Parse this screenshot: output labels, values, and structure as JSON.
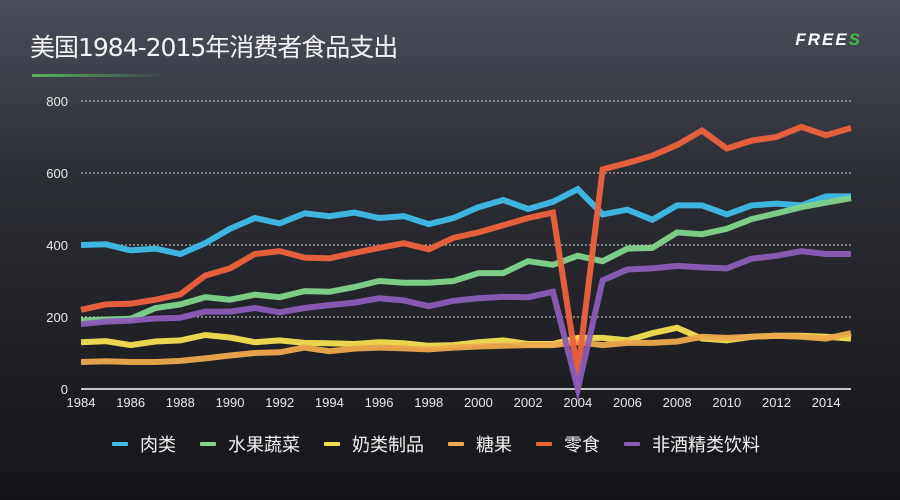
{
  "header": {
    "title": "美国1984-2015年消费者食品支出",
    "logo_text": "FREES",
    "logo_accent": "#3fbf4a"
  },
  "chart_data": {
    "type": "line",
    "title": "美国1984-2015年消费者食品支出",
    "xlabel": "",
    "ylabel": "",
    "xlim": [
      1984,
      2015
    ],
    "ylim": [
      0,
      800
    ],
    "yticks": [
      0,
      200,
      400,
      600,
      800
    ],
    "xticks": [
      1984,
      1986,
      1988,
      1990,
      1992,
      1994,
      1996,
      1998,
      2000,
      2002,
      2004,
      2006,
      2008,
      2010,
      2012,
      2014
    ],
    "grid": "horizontal dotted",
    "legend": "bottom",
    "x": [
      1984,
      1985,
      1986,
      1987,
      1988,
      1989,
      1990,
      1991,
      1992,
      1993,
      1994,
      1995,
      1996,
      1997,
      1998,
      1999,
      2000,
      2001,
      2002,
      2003,
      2004,
      2005,
      2006,
      2007,
      2008,
      2009,
      2010,
      2011,
      2012,
      2013,
      2014,
      2015
    ],
    "series": [
      {
        "name": "肉类",
        "color": "#3fbde9",
        "values": [
          400,
          402,
          385,
          390,
          375,
          405,
          445,
          475,
          460,
          488,
          480,
          490,
          475,
          480,
          458,
          475,
          505,
          525,
          500,
          520,
          555,
          485,
          498,
          470,
          510,
          510,
          485,
          510,
          515,
          510,
          535,
          535
        ]
      },
      {
        "name": "水果蔬菜",
        "color": "#7fd58b",
        "values": [
          190,
          193,
          195,
          225,
          235,
          255,
          248,
          262,
          255,
          272,
          270,
          283,
          300,
          295,
          295,
          300,
          322,
          322,
          355,
          345,
          370,
          355,
          390,
          392,
          435,
          430,
          445,
          472,
          488,
          505,
          518,
          530
        ]
      },
      {
        "name": "奶类制品",
        "color": "#f3e052",
        "values": [
          130,
          133,
          122,
          132,
          135,
          150,
          143,
          130,
          135,
          128,
          127,
          125,
          130,
          127,
          120,
          122,
          130,
          135,
          125,
          125,
          142,
          142,
          135,
          155,
          170,
          140,
          135,
          145,
          148,
          148,
          145,
          140
        ]
      },
      {
        "name": "糖果",
        "color": "#eea94c",
        "values": [
          75,
          77,
          75,
          75,
          78,
          85,
          93,
          100,
          102,
          115,
          105,
          112,
          115,
          113,
          110,
          115,
          118,
          120,
          122,
          122,
          130,
          122,
          128,
          128,
          132,
          145,
          142,
          145,
          148,
          145,
          140,
          155
        ]
      },
      {
        "name": "零食",
        "color": "#ee623d",
        "values": [
          220,
          235,
          237,
          248,
          263,
          315,
          335,
          375,
          383,
          365,
          363,
          378,
          392,
          405,
          388,
          420,
          435,
          455,
          475,
          490,
          45,
          610,
          628,
          648,
          678,
          718,
          668,
          690,
          700,
          728,
          705,
          725
        ]
      },
      {
        "name": "非酒精类饮料",
        "color": "#8b5db8",
        "values": [
          180,
          187,
          190,
          196,
          198,
          215,
          215,
          225,
          213,
          225,
          233,
          240,
          252,
          246,
          230,
          245,
          252,
          256,
          255,
          270,
          0,
          302,
          332,
          335,
          342,
          338,
          335,
          362,
          370,
          383,
          375,
          375
        ]
      }
    ]
  }
}
